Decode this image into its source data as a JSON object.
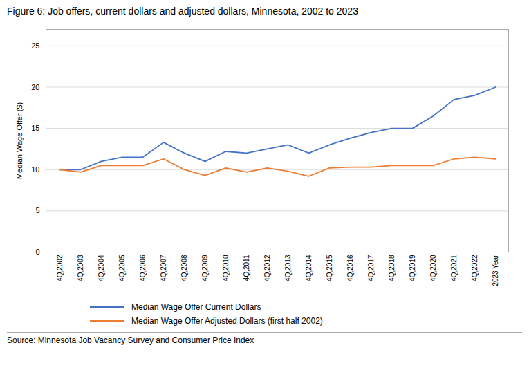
{
  "chart_data": {
    "type": "line",
    "title": "Figure 6: Job offers, current dollars and adjusted dollars, Minnesota, 2002 to 2023",
    "ylabel": "Median Wage Offer ($)",
    "source": "Source: Minnesota Job Vacancy Survey and Consumer Price Index",
    "categories": [
      "4Q,2002",
      "4Q,2003",
      "4Q,2004",
      "4Q,2005",
      "4Q,2006",
      "4Q,2007",
      "4Q,2008",
      "4Q,2009",
      "4Q,2010",
      "4Q,2011",
      "4Q,2012",
      "4Q,2013",
      "4Q,2014",
      "4Q,2015",
      "4Q,2016",
      "4Q,2017",
      "4Q,2018",
      "4Q,2019",
      "4Q,2020",
      "4Q,2021",
      "4Q,2022",
      "2023 Year"
    ],
    "series": [
      {
        "name": "Median Wage Offer Current Dollars",
        "color": "#4472C4",
        "values": [
          10.0,
          10.0,
          11.0,
          11.5,
          11.5,
          13.3,
          12.0,
          11.0,
          12.2,
          12.0,
          12.5,
          13.0,
          12.0,
          13.0,
          13.8,
          14.5,
          15.0,
          15.0,
          16.5,
          18.5,
          19.0,
          20.0
        ]
      },
      {
        "name": "Median Wage Offer Adjusted Dollars (first half 2002)",
        "color": "#ED7D31",
        "values": [
          10.0,
          9.7,
          10.5,
          10.5,
          10.5,
          11.3,
          10.0,
          9.3,
          10.2,
          9.7,
          10.2,
          9.8,
          9.2,
          10.2,
          10.3,
          10.3,
          10.5,
          10.5,
          10.5,
          11.3,
          11.5,
          11.3
        ]
      }
    ],
    "ylim": [
      0,
      27
    ],
    "yticks": [
      0,
      5,
      10,
      15,
      20,
      25
    ],
    "grid": true,
    "legend": "bottom"
  }
}
